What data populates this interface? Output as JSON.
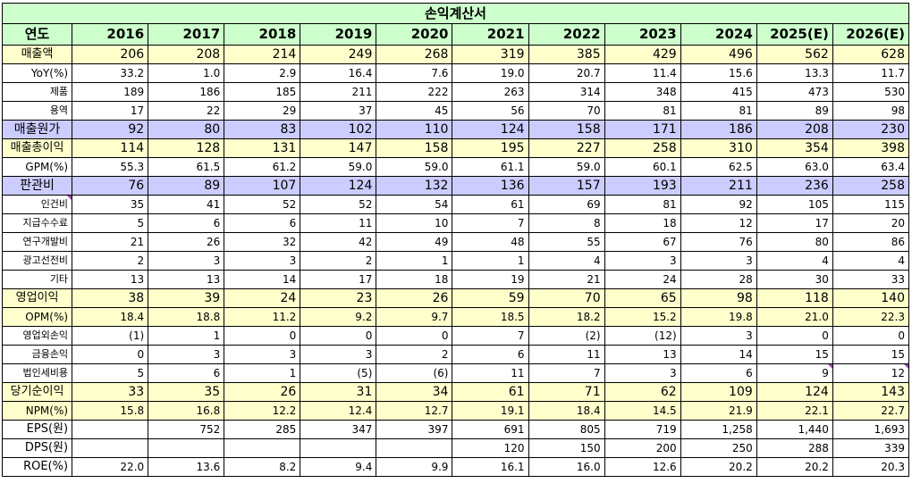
{
  "title": "손익계산서",
  "header": {
    "label": "연도",
    "years": [
      "2016",
      "2017",
      "2018",
      "2019",
      "2020",
      "2021",
      "2022",
      "2023",
      "2024",
      "2025(E)",
      "2026(E)"
    ]
  },
  "rows": [
    {
      "label": "매출액",
      "style": "major hl-y",
      "values": [
        "206",
        "208",
        "214",
        "249",
        "268",
        "319",
        "385",
        "429",
        "496",
        "562",
        "628"
      ]
    },
    {
      "label": "YoY(%)",
      "style": "pct",
      "values": [
        "33.2",
        "1.0",
        "2.9",
        "16.4",
        "7.6",
        "19.0",
        "20.7",
        "11.4",
        "15.6",
        "13.3",
        "11.7"
      ]
    },
    {
      "label": "제품",
      "style": "minor",
      "values": [
        "189",
        "186",
        "185",
        "211",
        "222",
        "263",
        "314",
        "348",
        "415",
        "473",
        "530"
      ]
    },
    {
      "label": "용역",
      "style": "minor",
      "values": [
        "17",
        "22",
        "29",
        "37",
        "45",
        "56",
        "70",
        "81",
        "81",
        "89",
        "98"
      ]
    },
    {
      "label": "매출원가",
      "style": "major hl-p",
      "values": [
        "92",
        "80",
        "83",
        "102",
        "110",
        "124",
        "158",
        "171",
        "186",
        "208",
        "230"
      ]
    },
    {
      "label": "매출총이익",
      "style": "major hl-y",
      "values": [
        "114",
        "128",
        "131",
        "147",
        "158",
        "195",
        "227",
        "258",
        "310",
        "354",
        "398"
      ]
    },
    {
      "label": "GPM(%)",
      "style": "pct",
      "values": [
        "55.3",
        "61.5",
        "61.2",
        "59.0",
        "59.0",
        "61.1",
        "59.0",
        "60.1",
        "62.5",
        "63.0",
        "63.4"
      ]
    },
    {
      "label": "판관비",
      "style": "major hl-p",
      "values": [
        "76",
        "89",
        "107",
        "124",
        "132",
        "136",
        "157",
        "193",
        "211",
        "236",
        "258"
      ]
    },
    {
      "label": "인건비",
      "style": "minor",
      "mark": true,
      "values": [
        "35",
        "41",
        "52",
        "52",
        "54",
        "61",
        "69",
        "81",
        "92",
        "105",
        "115"
      ]
    },
    {
      "label": "지급수수료",
      "style": "minor",
      "values": [
        "5",
        "6",
        "6",
        "11",
        "10",
        "7",
        "8",
        "18",
        "12",
        "17",
        "20"
      ]
    },
    {
      "label": "연구개발비",
      "style": "minor",
      "values": [
        "21",
        "26",
        "32",
        "42",
        "49",
        "48",
        "55",
        "67",
        "76",
        "80",
        "86"
      ]
    },
    {
      "label": "광고선전비",
      "style": "minor",
      "values": [
        "2",
        "3",
        "3",
        "2",
        "1",
        "1",
        "4",
        "3",
        "3",
        "4",
        "4"
      ]
    },
    {
      "label": "기타",
      "style": "minor",
      "values": [
        "13",
        "13",
        "14",
        "17",
        "18",
        "19",
        "21",
        "24",
        "28",
        "30",
        "33"
      ]
    },
    {
      "label": "영업이익",
      "style": "major hl-y",
      "values": [
        "38",
        "39",
        "24",
        "23",
        "26",
        "59",
        "70",
        "65",
        "98",
        "118",
        "140"
      ]
    },
    {
      "label": "OPM(%)",
      "style": "pct hl-y",
      "values": [
        "18.4",
        "18.8",
        "11.2",
        "9.2",
        "9.7",
        "18.5",
        "18.2",
        "15.2",
        "19.8",
        "21.0",
        "22.3"
      ]
    },
    {
      "label": "영업외손익",
      "style": "minor",
      "values": [
        "(1)",
        "1",
        "0",
        "0",
        "0",
        "7",
        "(2)",
        "(12)",
        "3",
        "0",
        "0"
      ]
    },
    {
      "label": "금융손익",
      "style": "minor",
      "values": [
        "0",
        "3",
        "3",
        "3",
        "2",
        "6",
        "11",
        "13",
        "14",
        "15",
        "15"
      ]
    },
    {
      "label": "법인세비용",
      "style": "minor",
      "markcols": [
        9,
        10
      ],
      "values": [
        "5",
        "6",
        "1",
        "(5)",
        "(6)",
        "11",
        "7",
        "3",
        "6",
        "9",
        "12"
      ]
    },
    {
      "label": "당기순이익",
      "style": "major hl-y",
      "values": [
        "33",
        "35",
        "26",
        "31",
        "34",
        "61",
        "71",
        "62",
        "109",
        "124",
        "143"
      ]
    },
    {
      "label": "NPM(%)",
      "style": "pct hl-y",
      "values": [
        "15.8",
        "16.8",
        "12.2",
        "12.4",
        "12.7",
        "19.1",
        "18.4",
        "14.5",
        "21.9",
        "22.1",
        "22.7"
      ]
    },
    {
      "label": "EPS(원)",
      "style": "bigl",
      "values": [
        "",
        "752",
        "285",
        "347",
        "397",
        "691",
        "805",
        "719",
        "1,258",
        "1,440",
        "1,693"
      ]
    },
    {
      "label": "DPS(원)",
      "style": "bigl",
      "values": [
        "",
        "",
        "",
        "",
        "",
        "120",
        "150",
        "200",
        "250",
        "288",
        "339"
      ]
    },
    {
      "label": "ROE(%)",
      "style": "bigl",
      "values": [
        "22.0",
        "13.6",
        "8.2",
        "9.4",
        "9.9",
        "16.1",
        "16.0",
        "12.6",
        "20.2",
        "20.2",
        "20.3"
      ]
    }
  ]
}
